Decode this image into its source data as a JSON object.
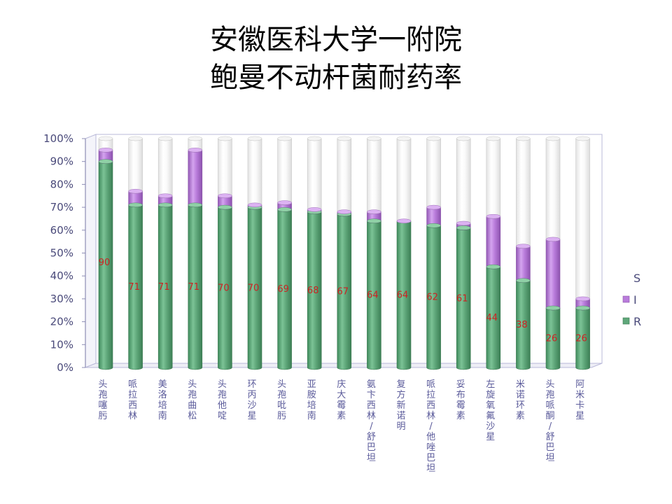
{
  "slide": {
    "title_line1": "安徽医科大学一附院",
    "title_line2": "鲍曼不动杆菌耐药率"
  },
  "chart_data": {
    "type": "bar",
    "stacked": true,
    "percent_stacked": true,
    "title": "安徽医科大学一附院 鲍曼不动杆菌耐药率",
    "categories": [
      "头孢噻肟",
      "哌拉西林",
      "美洛培南",
      "头孢曲松",
      "头孢他啶",
      "环丙沙星",
      "头孢吡肟",
      "亚胺培南",
      "庆大霉素",
      "氨卞西林/舒巴坦",
      "复方新诺明",
      "哌拉西林/他唑巴坦",
      "妥布霉素",
      "左旋氧氟沙星",
      "米诺环素",
      "头孢哌酮/舒巴坦",
      "阿米卡星"
    ],
    "series": [
      {
        "name": "R",
        "values": [
          90,
          71,
          71,
          71,
          70,
          70,
          69,
          68,
          67,
          64,
          64,
          62,
          61,
          44,
          38,
          26,
          26
        ],
        "color": "#5fa77a"
      },
      {
        "name": "I",
        "values": [
          5,
          6,
          4,
          24,
          5,
          1,
          3,
          1,
          1,
          4,
          0,
          8,
          2,
          22,
          15,
          30,
          4
        ],
        "color": "#b97cdb"
      },
      {
        "name": "S",
        "values": [
          5,
          23,
          25,
          5,
          25,
          29,
          28,
          31,
          32,
          32,
          36,
          30,
          37,
          34,
          47,
          44,
          70
        ],
        "color": "#ffffff"
      }
    ],
    "data_labels": {
      "series": "R",
      "values": [
        90,
        71,
        71,
        71,
        70,
        70,
        69,
        68,
        67,
        64,
        64,
        62,
        61,
        44,
        38,
        26,
        26
      ],
      "color": "#cc2222"
    },
    "yticks": [
      "0%",
      "10%",
      "20%",
      "30%",
      "40%",
      "50%",
      "60%",
      "70%",
      "80%",
      "90%",
      "100%"
    ],
    "ylim": [
      0,
      100
    ],
    "legend": {
      "position": "right",
      "entries": [
        "S",
        "I",
        "R"
      ]
    },
    "grid": false,
    "style": "3d-cylinder"
  }
}
